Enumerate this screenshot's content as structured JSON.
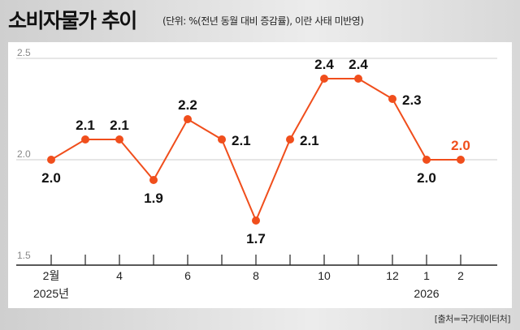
{
  "header": {
    "title": "소비자물가 추이",
    "subtitle": "(단위: %(전년 동월 대비 증감률), 이란 사태 미반영)"
  },
  "source": "[출처=국가데이터처]",
  "colors": {
    "line": "#f04e1c",
    "accent": "#f04e1c",
    "text": "#111111",
    "grid": "#dddddd"
  },
  "chart_data": {
    "type": "line",
    "title": "소비자물가 추이",
    "x": [
      "2025-02",
      "2025-03",
      "2025-04",
      "2025-05",
      "2025-06",
      "2025-07",
      "2025-08",
      "2025-09",
      "2025-10",
      "2025-11",
      "2025-12",
      "2026-01",
      "2026-02"
    ],
    "values": [
      2.0,
      2.1,
      2.1,
      1.9,
      2.2,
      2.1,
      1.7,
      2.1,
      2.4,
      2.4,
      2.3,
      2.0,
      2.0
    ],
    "data_labels": [
      "2.0",
      "2.1",
      "2.1",
      "1.9",
      "2.2",
      "2.1",
      "1.7",
      "2.1",
      "2.4",
      "2.4",
      "2.3",
      "2.0",
      "2.0"
    ],
    "label_side": [
      "below",
      "above",
      "above",
      "below",
      "above",
      "right",
      "below",
      "right",
      "above",
      "above",
      "right",
      "below",
      "above"
    ],
    "highlight_last": true,
    "ylim": [
      1.5,
      2.5
    ],
    "yticks": [
      "1.5",
      "2.0",
      "2.5"
    ],
    "xtick_labels": [
      {
        "i": 0,
        "label": "2월"
      },
      {
        "i": 2,
        "label": "4"
      },
      {
        "i": 4,
        "label": "6"
      },
      {
        "i": 6,
        "label": "8"
      },
      {
        "i": 8,
        "label": "10"
      },
      {
        "i": 10,
        "label": "12"
      },
      {
        "i": 11,
        "label": "1"
      },
      {
        "i": 12,
        "label": "2"
      }
    ],
    "year_labels": [
      {
        "i": 0,
        "label": "2025년"
      },
      {
        "i": 11,
        "label": "2026"
      }
    ],
    "grid": true
  }
}
